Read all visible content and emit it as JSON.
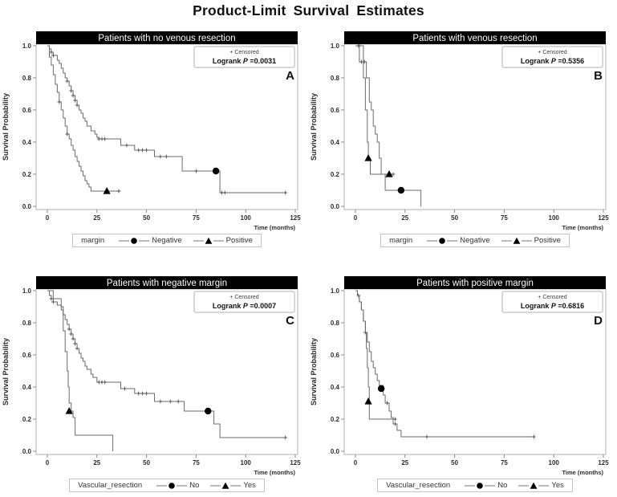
{
  "page_title": "Product-Limit Survival Estimates",
  "axis": {
    "y_label": "Survival Probability",
    "x_label": "Time (months)",
    "y_ticks": [
      "1.0",
      "0.8",
      "0.6",
      "0.4",
      "0.2",
      "0.0"
    ],
    "x_ticks": [
      "0",
      "25",
      "50",
      "75",
      "100",
      "125"
    ]
  },
  "annotation": {
    "censored_label": "+ Censored",
    "logrank_prefix": "Logrank",
    "p_symbol": "P"
  },
  "colors": {
    "curve": "#6a6a6a",
    "marker": "#000000",
    "title_bar_bg": "#000000",
    "title_bar_text": "#ffffff",
    "frame_border": "#b0b0b0",
    "tick": "#8a8a8a",
    "text": "#1a1a1a",
    "censor_mark": "#4a4a4a"
  },
  "chart_data": [
    {
      "id": "A",
      "type": "line",
      "subtype": "kaplan-meier-step",
      "title": "Patients with no venous resection",
      "letter": "A",
      "p_equals_value": "=0.0031",
      "group_label": "margin",
      "xlabel": "Time (months)",
      "ylabel": "Survival Probability",
      "xlim": [
        0,
        125
      ],
      "ylim": [
        0.0,
        1.0
      ],
      "series": [
        {
          "name": "Negative",
          "marker": "circle",
          "steps": [
            [
              0,
              1.0
            ],
            [
              1,
              0.98
            ],
            [
              2,
              0.96
            ],
            [
              3,
              0.94
            ],
            [
              5,
              0.91
            ],
            [
              6,
              0.89
            ],
            [
              7,
              0.86
            ],
            [
              8,
              0.83
            ],
            [
              9,
              0.8
            ],
            [
              10,
              0.78
            ],
            [
              11,
              0.75
            ],
            [
              12,
              0.72
            ],
            [
              13,
              0.69
            ],
            [
              14,
              0.66
            ],
            [
              15,
              0.63
            ],
            [
              16,
              0.6
            ],
            [
              17,
              0.58
            ],
            [
              18,
              0.55
            ],
            [
              19,
              0.53
            ],
            [
              20,
              0.5
            ],
            [
              22,
              0.47
            ],
            [
              24,
              0.45
            ],
            [
              25,
              0.43
            ],
            [
              26,
              0.42
            ],
            [
              37,
              0.38
            ],
            [
              44,
              0.35
            ],
            [
              54,
              0.31
            ],
            [
              68,
              0.22
            ],
            [
              87,
              0.085
            ]
          ],
          "end_t": 120,
          "censors": [
            [
              2,
              0.96
            ],
            [
              3,
              0.94
            ],
            [
              10,
              0.78
            ],
            [
              12,
              0.72
            ],
            [
              13,
              0.69
            ],
            [
              14,
              0.66
            ],
            [
              15,
              0.63
            ],
            [
              26,
              0.42
            ],
            [
              27.5,
              0.42
            ],
            [
              29,
              0.42
            ],
            [
              40,
              0.38
            ],
            [
              46,
              0.35
            ],
            [
              48,
              0.35
            ],
            [
              50,
              0.35
            ],
            [
              57,
              0.31
            ],
            [
              60,
              0.31
            ],
            [
              75,
              0.22
            ],
            [
              88,
              0.085
            ],
            [
              89.5,
              0.085
            ],
            [
              120,
              0.085
            ]
          ],
          "markers_at": [
            [
              85,
              0.22
            ]
          ]
        },
        {
          "name": "Positive",
          "marker": "triangle",
          "steps": [
            [
              0,
              1.0
            ],
            [
              1,
              0.93
            ],
            [
              2,
              0.88
            ],
            [
              3,
              0.82
            ],
            [
              4,
              0.76
            ],
            [
              5,
              0.71
            ],
            [
              6,
              0.65
            ],
            [
              7,
              0.6
            ],
            [
              8,
              0.55
            ],
            [
              9,
              0.5
            ],
            [
              10,
              0.45
            ],
            [
              11,
              0.42
            ],
            [
              12,
              0.38
            ],
            [
              13,
              0.35
            ],
            [
              14,
              0.31
            ],
            [
              15,
              0.28
            ],
            [
              16,
              0.25
            ],
            [
              17,
              0.22
            ],
            [
              18,
              0.19
            ],
            [
              19,
              0.16
            ],
            [
              20,
              0.14
            ],
            [
              21,
              0.12
            ],
            [
              22,
              0.095
            ]
          ],
          "end_t": 37,
          "censors": [
            [
              6,
              0.65
            ],
            [
              10,
              0.45
            ],
            [
              36,
              0.095
            ]
          ],
          "markers_at": [
            [
              30,
              0.095
            ]
          ]
        }
      ]
    },
    {
      "id": "B",
      "type": "line",
      "subtype": "kaplan-meier-step",
      "title": "Patients with venous resection",
      "letter": "B",
      "p_equals_value": "=0.5356",
      "group_label": "margin",
      "xlabel": "Time (months)",
      "ylabel": "Survival Probability",
      "xlim": [
        0,
        125
      ],
      "ylim": [
        0.0,
        1.0
      ],
      "series": [
        {
          "name": "Negative",
          "marker": "circle",
          "steps": [
            [
              0,
              1.0
            ],
            [
              4,
              0.9
            ],
            [
              5.5,
              0.8
            ],
            [
              7,
              0.65
            ],
            [
              8,
              0.6
            ],
            [
              9,
              0.5
            ],
            [
              10,
              0.45
            ],
            [
              11,
              0.4
            ],
            [
              12,
              0.3
            ],
            [
              13,
              0.2
            ],
            [
              15,
              0.1
            ],
            [
              33,
              0.0
            ]
          ],
          "end_t": 33,
          "censors": [
            [
              2,
              1.0
            ],
            [
              4.5,
              0.9
            ]
          ],
          "markers_at": [
            [
              23,
              0.1
            ]
          ]
        },
        {
          "name": "Positive",
          "marker": "triangle",
          "steps": [
            [
              0,
              1.0
            ],
            [
              2,
              0.9
            ],
            [
              4,
              0.8
            ],
            [
              5,
              0.6
            ],
            [
              6,
              0.4
            ],
            [
              6.5,
              0.3
            ],
            [
              7.5,
              0.2
            ]
          ],
          "end_t": 19,
          "censors": [
            [
              1.5,
              1.0
            ],
            [
              3,
              0.9
            ],
            [
              19,
              0.2
            ]
          ],
          "markers_at": [
            [
              6.5,
              0.3
            ],
            [
              17,
              0.2
            ]
          ]
        }
      ]
    },
    {
      "id": "C",
      "type": "line",
      "subtype": "kaplan-meier-step",
      "title": "Patients with negative margin",
      "letter": "C",
      "p_equals_value": "=0.0007",
      "group_label": "Vascular_resection",
      "xlabel": "Time (months)",
      "ylabel": "Survival Probability",
      "xlim": [
        0,
        125
      ],
      "ylim": [
        0.0,
        1.0
      ],
      "series": [
        {
          "name": "No",
          "marker": "circle",
          "steps": [
            [
              0,
              1.0
            ],
            [
              1,
              0.97
            ],
            [
              2,
              0.95
            ],
            [
              3,
              0.93
            ],
            [
              5,
              0.91
            ],
            [
              7,
              0.88
            ],
            [
              8,
              0.85
            ],
            [
              9,
              0.82
            ],
            [
              10,
              0.79
            ],
            [
              11,
              0.76
            ],
            [
              12,
              0.73
            ],
            [
              13,
              0.7
            ],
            [
              14,
              0.67
            ],
            [
              15,
              0.64
            ],
            [
              16,
              0.61
            ],
            [
              17,
              0.58
            ],
            [
              18,
              0.56
            ],
            [
              19,
              0.53
            ],
            [
              20,
              0.51
            ],
            [
              22,
              0.48
            ],
            [
              23,
              0.46
            ],
            [
              25,
              0.43
            ],
            [
              37,
              0.39
            ],
            [
              44,
              0.36
            ],
            [
              54,
              0.31
            ],
            [
              69,
              0.25
            ],
            [
              84,
              0.17
            ],
            [
              87,
              0.085
            ]
          ],
          "end_t": 120,
          "censors": [
            [
              2,
              0.95
            ],
            [
              3,
              0.93
            ],
            [
              11,
              0.76
            ],
            [
              12,
              0.73
            ],
            [
              13,
              0.7
            ],
            [
              14,
              0.67
            ],
            [
              15,
              0.64
            ],
            [
              26,
              0.43
            ],
            [
              27.5,
              0.43
            ],
            [
              29,
              0.43
            ],
            [
              39,
              0.39
            ],
            [
              46,
              0.36
            ],
            [
              48,
              0.36
            ],
            [
              50,
              0.36
            ],
            [
              57,
              0.31
            ],
            [
              62,
              0.31
            ],
            [
              66,
              0.31
            ],
            [
              120,
              0.085
            ]
          ],
          "markers_at": [
            [
              81,
              0.25
            ]
          ]
        },
        {
          "name": "Yes",
          "marker": "triangle",
          "steps": [
            [
              0,
              1.0
            ],
            [
              3,
              0.95
            ],
            [
              7,
              0.9
            ],
            [
              8,
              0.75
            ],
            [
              9,
              0.62
            ],
            [
              10,
              0.5
            ],
            [
              10.5,
              0.4
            ],
            [
              11,
              0.3
            ],
            [
              12,
              0.25
            ],
            [
              13,
              0.21
            ],
            [
              14,
              0.1
            ],
            [
              33,
              0.0
            ]
          ],
          "end_t": 33,
          "censors": [],
          "markers_at": [
            [
              11,
              0.25
            ]
          ]
        }
      ]
    },
    {
      "id": "D",
      "type": "line",
      "subtype": "kaplan-meier-step",
      "title": "Patients with positive margin",
      "letter": "D",
      "p_equals_value": "=0.6816",
      "group_label": "Vascular_resection",
      "xlabel": "Time (months)",
      "ylabel": "Survival Probability",
      "xlim": [
        0,
        125
      ],
      "ylim": [
        0.0,
        1.0
      ],
      "series": [
        {
          "name": "No",
          "marker": "circle",
          "steps": [
            [
              0,
              1.0
            ],
            [
              1,
              0.97
            ],
            [
              2,
              0.93
            ],
            [
              3,
              0.88
            ],
            [
              4,
              0.81
            ],
            [
              5,
              0.74
            ],
            [
              6,
              0.68
            ],
            [
              7,
              0.62
            ],
            [
              8,
              0.56
            ],
            [
              9,
              0.52
            ],
            [
              10,
              0.48
            ],
            [
              11,
              0.44
            ],
            [
              12,
              0.41
            ],
            [
              14,
              0.35
            ],
            [
              15,
              0.3
            ],
            [
              17,
              0.25
            ],
            [
              18,
              0.21
            ],
            [
              19,
              0.17
            ],
            [
              21,
              0.13
            ],
            [
              23,
              0.09
            ]
          ],
          "end_t": 90,
          "censors": [
            [
              1.5,
              0.97
            ],
            [
              5,
              0.74
            ],
            [
              16,
              0.3
            ],
            [
              20,
              0.17
            ],
            [
              36,
              0.09
            ],
            [
              90,
              0.09
            ]
          ],
          "markers_at": [
            [
              13,
              0.39
            ]
          ]
        },
        {
          "name": "Yes",
          "marker": "triangle",
          "steps": [
            [
              0,
              1.0
            ],
            [
              1,
              0.97
            ],
            [
              2,
              0.93
            ],
            [
              3,
              0.88
            ],
            [
              4,
              0.81
            ],
            [
              5,
              0.74
            ],
            [
              5.5,
              0.64
            ],
            [
              6,
              0.52
            ],
            [
              6.5,
              0.4
            ],
            [
              7,
              0.2
            ]
          ],
          "end_t": 20,
          "censors": [
            [
              20,
              0.2
            ]
          ],
          "markers_at": [
            [
              6.5,
              0.31
            ]
          ]
        }
      ]
    }
  ]
}
